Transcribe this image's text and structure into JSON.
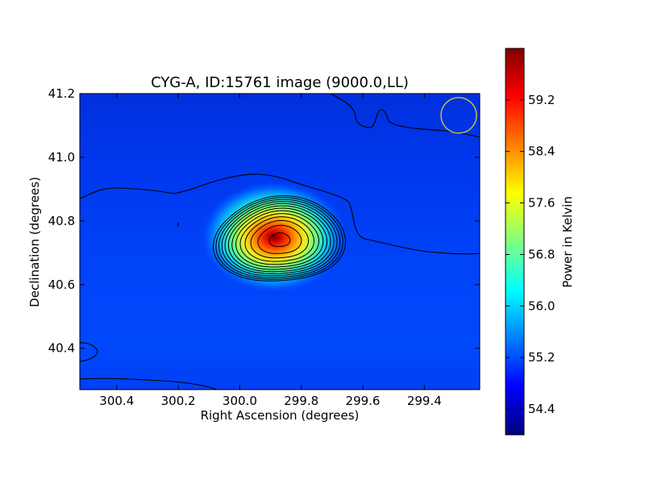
{
  "chart_data": {
    "type": "heatmap",
    "title": "CYG-A, ID:15761 image (9000.0,LL)",
    "xlabel": "Right Ascension (degrees)",
    "ylabel": "Declination (degrees)",
    "xlim": [
      300.52,
      299.22
    ],
    "ylim": [
      40.27,
      41.2
    ],
    "x_ticks": [
      "300.4",
      "300.2",
      "300.0",
      "299.8",
      "299.6",
      "299.4"
    ],
    "x_tick_values": [
      300.4,
      300.2,
      300.0,
      299.8,
      299.6,
      299.4
    ],
    "y_ticks": [
      "40.4",
      "40.6",
      "40.8",
      "41.0",
      "41.2"
    ],
    "y_tick_values": [
      40.4,
      40.6,
      40.8,
      41.0,
      41.2
    ],
    "colorbar": {
      "label": "Power in Kelvin",
      "min": 54.0,
      "max": 60.0,
      "ticks": [
        "54.4",
        "55.2",
        "56.0",
        "56.8",
        "57.6",
        "58.4",
        "59.2"
      ],
      "tick_values": [
        54.4,
        55.2,
        56.0,
        56.8,
        57.6,
        58.4,
        59.2
      ],
      "colormap": "jet"
    },
    "source": {
      "ra": 299.87,
      "dec": 40.74,
      "peak": 59.9,
      "background": 54.7
    },
    "contour_levels": [
      55.0,
      55.4,
      55.8,
      56.2,
      56.6,
      57.0,
      57.4,
      57.8,
      58.2,
      58.6,
      59.0,
      59.4,
      59.8
    ],
    "beam_marker": {
      "ra": 299.28,
      "dec": 41.13,
      "color": "#d4c84a"
    },
    "background_contour_color": "#000000"
  }
}
